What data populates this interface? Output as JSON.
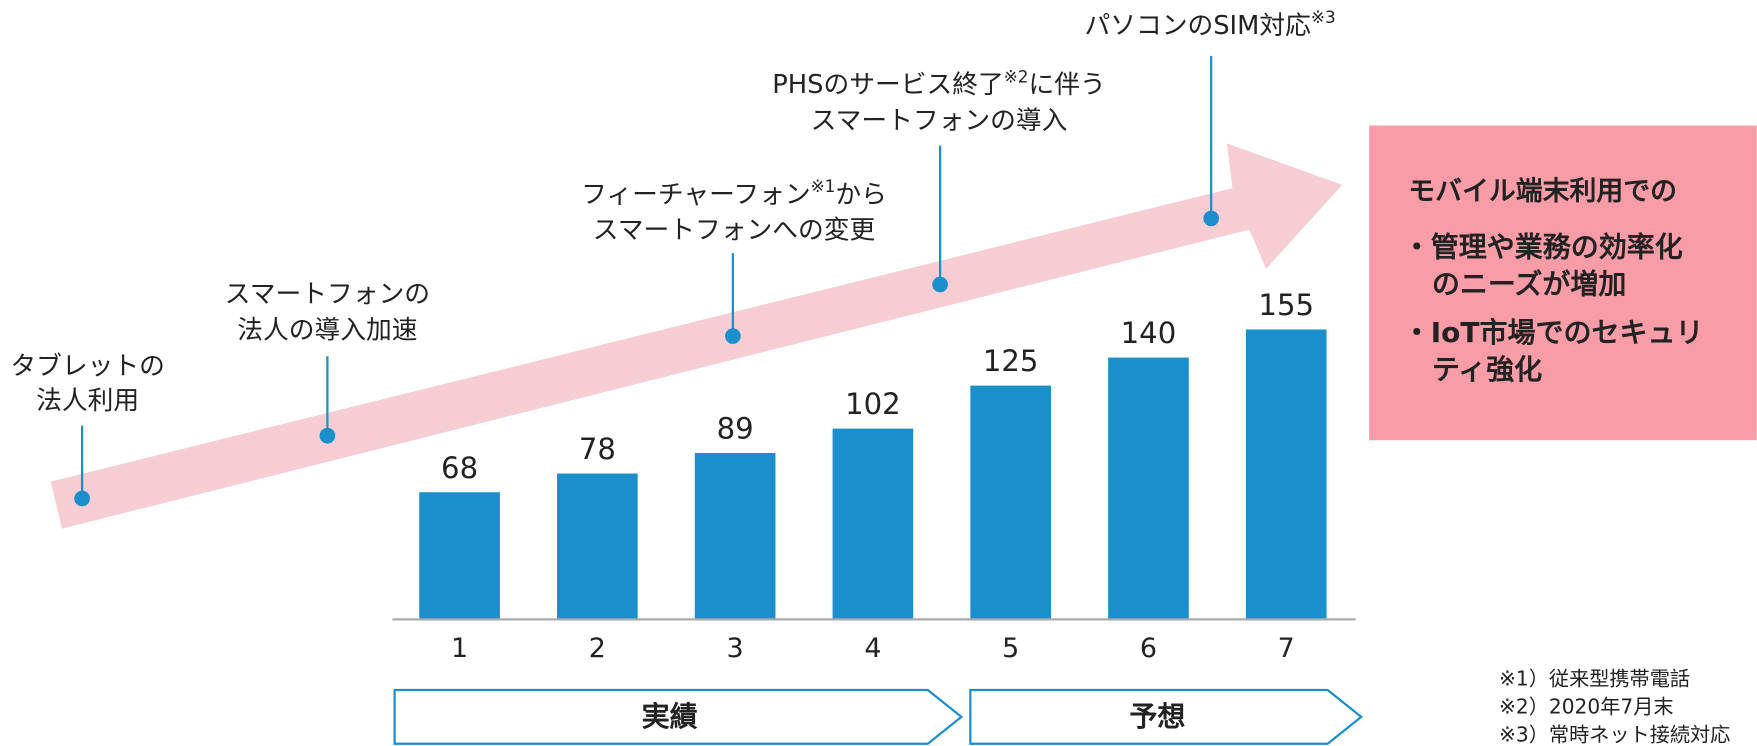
{
  "chart_data": {
    "type": "bar",
    "categories": [
      "1",
      "2",
      "3",
      "4",
      "5",
      "6",
      "7"
    ],
    "values": [
      68,
      78,
      89,
      102,
      125,
      140,
      155
    ],
    "color": "#1a8fcb",
    "ylim": [
      0,
      200
    ],
    "annotations": [
      {
        "lines": [
          [
            {
              "text": "タブレットの"
            }
          ],
          [
            {
              "text": "法人利用"
            }
          ]
        ]
      },
      {
        "lines": [
          [
            {
              "text": "スマートフォンの"
            }
          ],
          [
            {
              "text": "法人の導入加速"
            }
          ]
        ]
      },
      {
        "lines": [
          [
            {
              "text": "フィーチャーフォン"
            },
            {
              "text": "※1",
              "sup": true
            },
            {
              "text": "から"
            }
          ],
          [
            {
              "text": "スマートフォンへの変更"
            }
          ]
        ]
      },
      {
        "lines": [
          [
            {
              "text": "PHSのサービス終了"
            },
            {
              "text": "※2",
              "sup": true
            },
            {
              "text": "に伴う"
            }
          ],
          [
            {
              "text": "スマートフォンの導入"
            }
          ]
        ]
      },
      {
        "lines": [
          [
            {
              "text": "パソコンのSIM対応"
            },
            {
              "text": "※3",
              "sup": true
            }
          ]
        ]
      }
    ],
    "phases": [
      {
        "label": "実績"
      },
      {
        "label": "予想"
      }
    ],
    "callout": {
      "heading": "モバイル端末利用での",
      "bullets": [
        [
          "・管理や業務の効率化",
          "のニーズが増加"
        ],
        [
          "・IoT市場でのセキュリ",
          "ティ強化"
        ]
      ]
    },
    "footnotes": [
      "※1）従来型携帯電話",
      "※2）2020年7月末",
      "※3）常時ネット接続対応"
    ]
  }
}
